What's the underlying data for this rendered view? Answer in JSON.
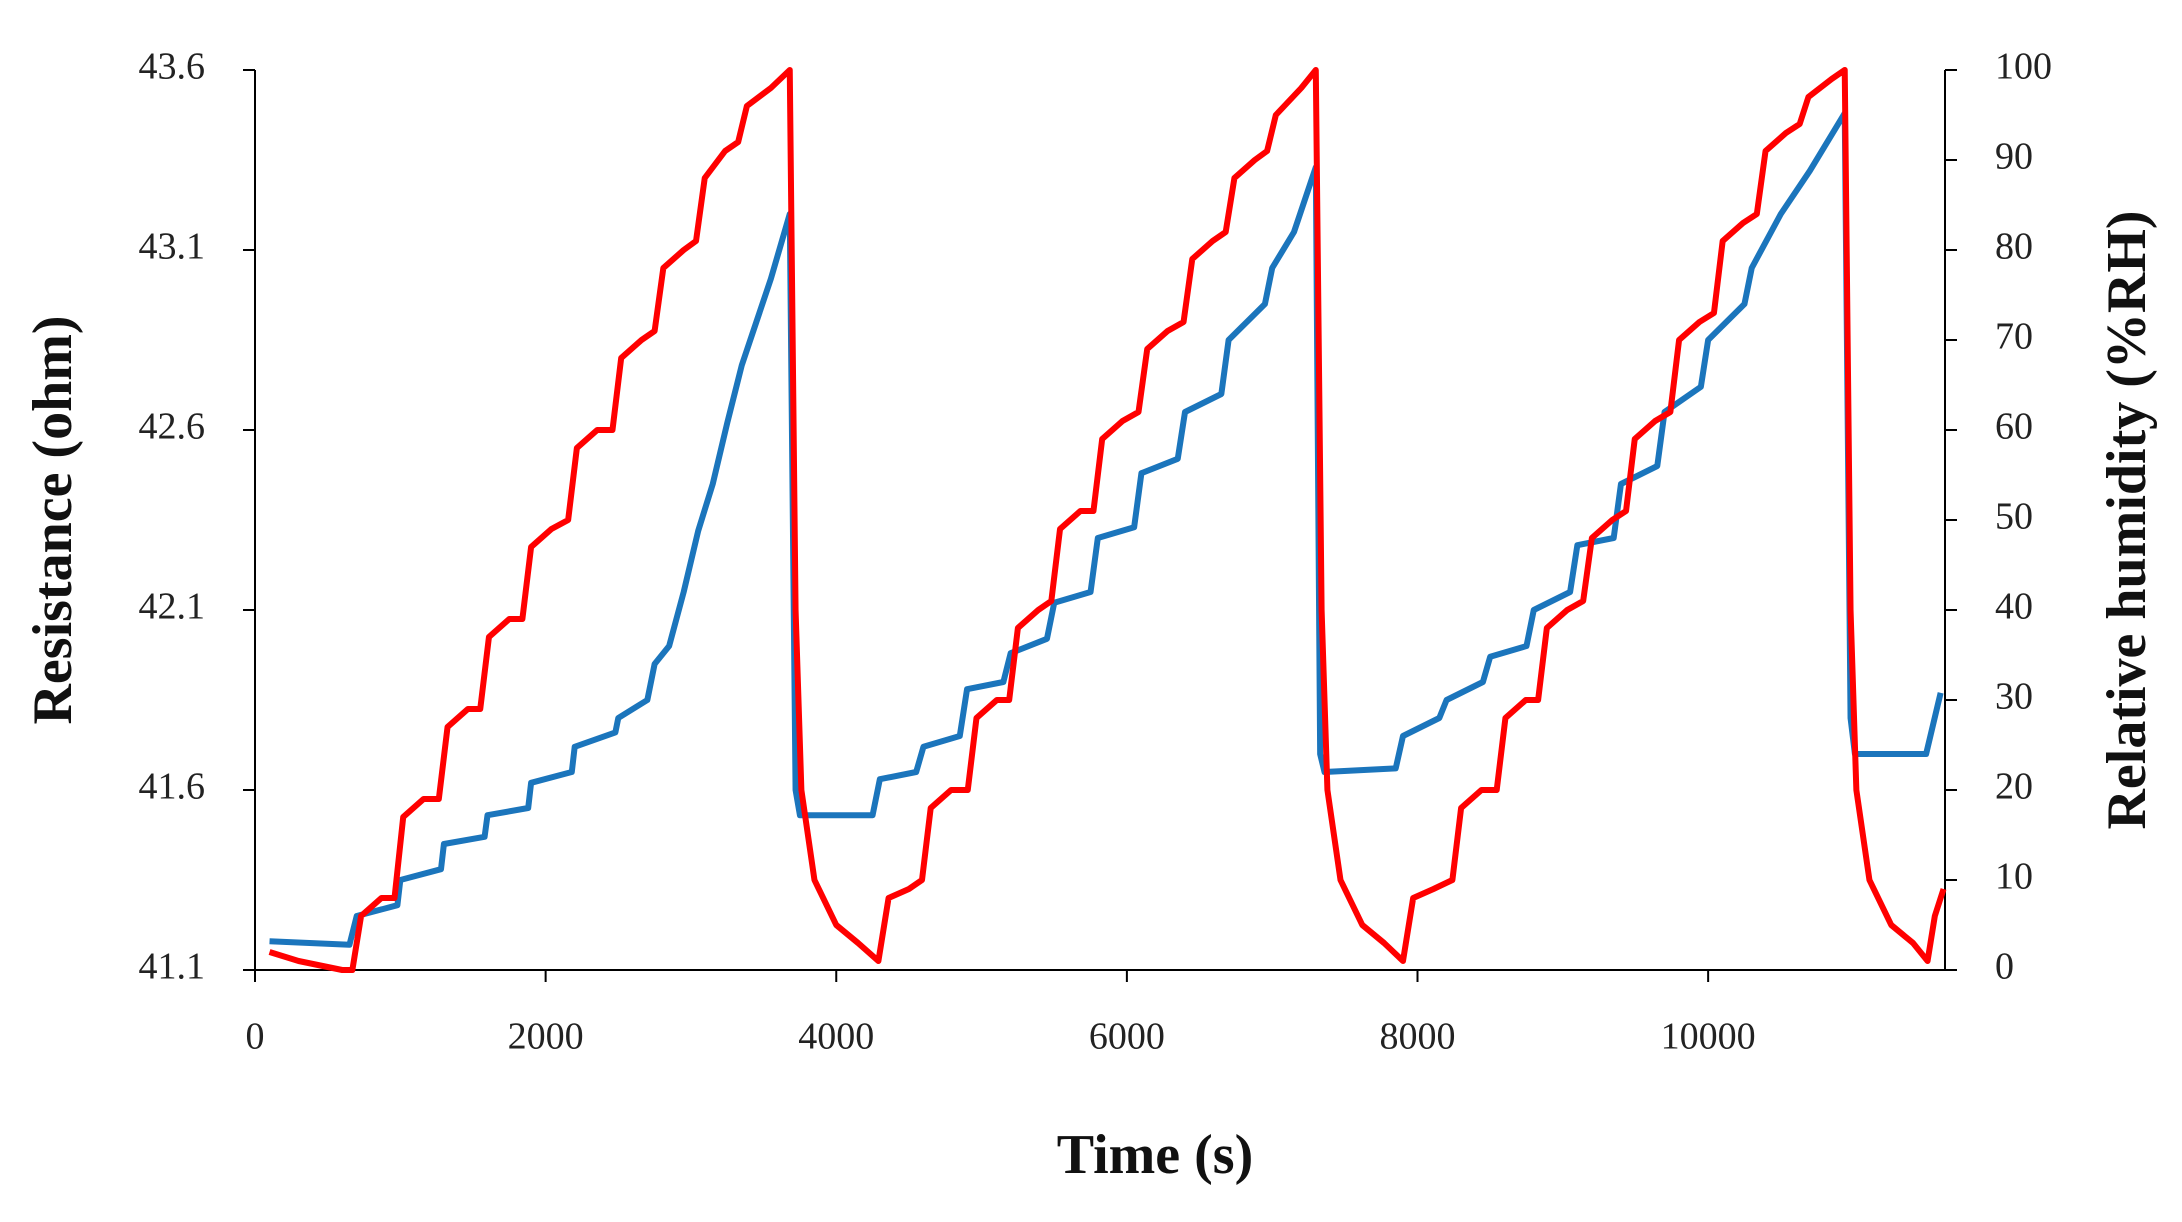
{
  "chart_data": {
    "type": "line",
    "xlabel": "Time (s)",
    "ylabel": "Resistance (ohm)",
    "y2label": "Relative humidity (%RH)",
    "xlim": [
      0,
      11630
    ],
    "xticks": [
      0,
      2000,
      4000,
      6000,
      8000,
      10000
    ],
    "ylim": [
      41.1,
      43.6
    ],
    "yticks": [
      41.1,
      41.6,
      42.1,
      42.6,
      43.1,
      43.6
    ],
    "y2lim": [
      0,
      100
    ],
    "y2ticks": [
      0,
      10,
      20,
      30,
      40,
      50,
      60,
      70,
      80,
      90,
      100
    ],
    "grid": false,
    "series": [
      {
        "color": "#1b75bc",
        "axis": "y",
        "x": [
          100,
          650,
          700,
          980,
          1000,
          1280,
          1300,
          1580,
          1600,
          1880,
          1900,
          2180,
          2200,
          2480,
          2500,
          2700,
          2750,
          2850,
          2950,
          3050,
          3150,
          3250,
          3350,
          3450,
          3550,
          3680,
          3720,
          3750,
          4250,
          4300,
          4550,
          4600,
          4850,
          4900,
          5150,
          5200,
          5450,
          5500,
          5750,
          5800,
          6050,
          6100,
          6350,
          6400,
          6650,
          6700,
          6950,
          7000,
          7150,
          7300,
          7330,
          7360,
          7850,
          7900,
          8150,
          8200,
          8450,
          8500,
          8750,
          8800,
          9050,
          9100,
          9350,
          9400,
          9650,
          9700,
          9950,
          10000,
          10250,
          10300,
          10500,
          10700,
          10940,
          10980,
          11010,
          11500,
          11600
        ],
        "values": [
          41.18,
          41.17,
          41.25,
          41.28,
          41.35,
          41.38,
          41.45,
          41.47,
          41.53,
          41.55,
          41.62,
          41.65,
          41.72,
          41.76,
          41.8,
          41.85,
          41.95,
          42.0,
          42.15,
          42.32,
          42.45,
          42.62,
          42.78,
          42.9,
          43.02,
          43.2,
          41.6,
          41.53,
          41.53,
          41.63,
          41.65,
          41.72,
          41.75,
          41.88,
          41.9,
          41.98,
          42.02,
          42.12,
          42.15,
          42.3,
          42.33,
          42.48,
          42.52,
          42.65,
          42.7,
          42.85,
          42.95,
          43.05,
          43.15,
          43.33,
          41.7,
          41.65,
          41.66,
          41.75,
          41.8,
          41.85,
          41.9,
          41.97,
          42.0,
          42.1,
          42.15,
          42.28,
          42.3,
          42.45,
          42.5,
          42.65,
          42.72,
          42.85,
          42.95,
          43.05,
          43.2,
          43.32,
          43.48,
          41.8,
          41.7,
          41.7,
          41.87
        ]
      },
      {
        "color": "#ff0000",
        "axis": "y2",
        "x": [
          100,
          300,
          600,
          670,
          730,
          870,
          960,
          1020,
          1160,
          1265,
          1325,
          1465,
          1550,
          1610,
          1750,
          1840,
          1900,
          2040,
          2155,
          2215,
          2355,
          2460,
          2520,
          2660,
          2750,
          2810,
          2950,
          3035,
          3095,
          3235,
          3325,
          3385,
          3550,
          3680,
          3720,
          3760,
          3850,
          4000,
          4150,
          4290,
          4360,
          4500,
          4590,
          4650,
          4790,
          4905,
          4965,
          5105,
          5190,
          5250,
          5390,
          5480,
          5540,
          5680,
          5770,
          5830,
          5970,
          6080,
          6140,
          6280,
          6390,
          6450,
          6590,
          6680,
          6740,
          6880,
          6965,
          7025,
          7200,
          7300,
          7340,
          7380,
          7470,
          7620,
          7770,
          7900,
          7970,
          8110,
          8240,
          8300,
          8440,
          8545,
          8605,
          8745,
          8830,
          8890,
          9030,
          9140,
          9200,
          9340,
          9435,
          9495,
          9635,
          9740,
          9800,
          9940,
          10040,
          10100,
          10240,
          10335,
          10395,
          10535,
          10630,
          10690,
          10850,
          10940,
          10980,
          11020,
          11110,
          11260,
          11410,
          11510,
          11560,
          11620
        ],
        "values": [
          2,
          1,
          0,
          0,
          6,
          8,
          8,
          17,
          19,
          19,
          27,
          29,
          29,
          37,
          39,
          39,
          47,
          49,
          50,
          58,
          60,
          60,
          68,
          70,
          71,
          78,
          80,
          81,
          88,
          91,
          92,
          96,
          98,
          100,
          40,
          20,
          10,
          5,
          3,
          1,
          8,
          9,
          10,
          18,
          20,
          20,
          28,
          30,
          30,
          38,
          40,
          41,
          49,
          51,
          51,
          59,
          61,
          62,
          69,
          71,
          72,
          79,
          81,
          82,
          88,
          90,
          91,
          95,
          98,
          100,
          40,
          20,
          10,
          5,
          3,
          1,
          8,
          9,
          10,
          18,
          20,
          20,
          28,
          30,
          30,
          38,
          40,
          41,
          48,
          50,
          51,
          59,
          61,
          62,
          70,
          72,
          73,
          81,
          83,
          84,
          91,
          93,
          94,
          97,
          99,
          100,
          40,
          20,
          10,
          5,
          3,
          1,
          6,
          9
        ]
      }
    ]
  }
}
